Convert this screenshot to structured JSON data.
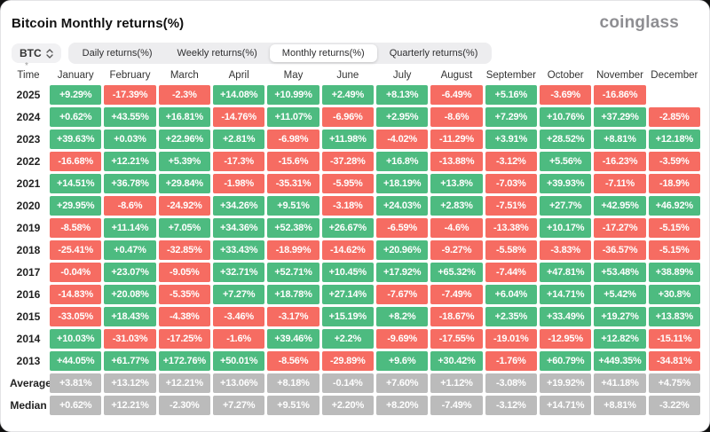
{
  "page": {
    "title": "Bitcoin Monthly returns(%)",
    "logo": "coinglass"
  },
  "controls": {
    "coin_selector": {
      "label": "BTC"
    },
    "footnote_mark": "*",
    "tabs": [
      {
        "label": "Daily returns(%)",
        "active": false
      },
      {
        "label": "Weekly returns(%)",
        "active": false
      },
      {
        "label": "Monthly returns(%)",
        "active": true
      },
      {
        "label": "Quarterly returns(%)",
        "active": false
      }
    ]
  },
  "colors": {
    "positive": "#4DBB80",
    "negative": "#F66C62",
    "neutral": "#BBBBBB"
  },
  "chart_data": {
    "type": "table",
    "title": "Bitcoin Monthly returns(%)",
    "time_header": "Time",
    "columns": [
      "January",
      "February",
      "March",
      "April",
      "May",
      "June",
      "July",
      "August",
      "September",
      "October",
      "November",
      "December"
    ],
    "rows": [
      {
        "label": "2025",
        "type": "year",
        "values": [
          "+9.29%",
          "-17.39%",
          "-2.3%",
          "+14.08%",
          "+10.99%",
          "+2.49%",
          "+8.13%",
          "-6.49%",
          "+5.16%",
          "-3.69%",
          "-16.86%",
          ""
        ]
      },
      {
        "label": "2024",
        "type": "year",
        "values": [
          "+0.62%",
          "+43.55%",
          "+16.81%",
          "-14.76%",
          "+11.07%",
          "-6.96%",
          "+2.95%",
          "-8.6%",
          "+7.29%",
          "+10.76%",
          "+37.29%",
          "-2.85%"
        ]
      },
      {
        "label": "2023",
        "type": "year",
        "values": [
          "+39.63%",
          "+0.03%",
          "+22.96%",
          "+2.81%",
          "-6.98%",
          "+11.98%",
          "-4.02%",
          "-11.29%",
          "+3.91%",
          "+28.52%",
          "+8.81%",
          "+12.18%"
        ]
      },
      {
        "label": "2022",
        "type": "year",
        "values": [
          "-16.68%",
          "+12.21%",
          "+5.39%",
          "-17.3%",
          "-15.6%",
          "-37.28%",
          "+16.8%",
          "-13.88%",
          "-3.12%",
          "+5.56%",
          "-16.23%",
          "-3.59%"
        ]
      },
      {
        "label": "2021",
        "type": "year",
        "values": [
          "+14.51%",
          "+36.78%",
          "+29.84%",
          "-1.98%",
          "-35.31%",
          "-5.95%",
          "+18.19%",
          "+13.8%",
          "-7.03%",
          "+39.93%",
          "-7.11%",
          "-18.9%"
        ]
      },
      {
        "label": "2020",
        "type": "year",
        "values": [
          "+29.95%",
          "-8.6%",
          "-24.92%",
          "+34.26%",
          "+9.51%",
          "-3.18%",
          "+24.03%",
          "+2.83%",
          "-7.51%",
          "+27.7%",
          "+42.95%",
          "+46.92%"
        ]
      },
      {
        "label": "2019",
        "type": "year",
        "values": [
          "-8.58%",
          "+11.14%",
          "+7.05%",
          "+34.36%",
          "+52.38%",
          "+26.67%",
          "-6.59%",
          "-4.6%",
          "-13.38%",
          "+10.17%",
          "-17.27%",
          "-5.15%"
        ]
      },
      {
        "label": "2018",
        "type": "year",
        "values": [
          "-25.41%",
          "+0.47%",
          "-32.85%",
          "+33.43%",
          "-18.99%",
          "-14.62%",
          "+20.96%",
          "-9.27%",
          "-5.58%",
          "-3.83%",
          "-36.57%",
          "-5.15%"
        ]
      },
      {
        "label": "2017",
        "type": "year",
        "values": [
          "-0.04%",
          "+23.07%",
          "-9.05%",
          "+32.71%",
          "+52.71%",
          "+10.45%",
          "+17.92%",
          "+65.32%",
          "-7.44%",
          "+47.81%",
          "+53.48%",
          "+38.89%"
        ]
      },
      {
        "label": "2016",
        "type": "year",
        "values": [
          "-14.83%",
          "+20.08%",
          "-5.35%",
          "+7.27%",
          "+18.78%",
          "+27.14%",
          "-7.67%",
          "-7.49%",
          "+6.04%",
          "+14.71%",
          "+5.42%",
          "+30.8%"
        ]
      },
      {
        "label": "2015",
        "type": "year",
        "values": [
          "-33.05%",
          "+18.43%",
          "-4.38%",
          "-3.46%",
          "-3.17%",
          "+15.19%",
          "+8.2%",
          "-18.67%",
          "+2.35%",
          "+33.49%",
          "+19.27%",
          "+13.83%"
        ]
      },
      {
        "label": "2014",
        "type": "year",
        "values": [
          "+10.03%",
          "-31.03%",
          "-17.25%",
          "-1.6%",
          "+39.46%",
          "+2.2%",
          "-9.69%",
          "-17.55%",
          "-19.01%",
          "-12.95%",
          "+12.82%",
          "-15.11%"
        ]
      },
      {
        "label": "2013",
        "type": "year",
        "values": [
          "+44.05%",
          "+61.77%",
          "+172.76%",
          "+50.01%",
          "-8.56%",
          "-29.89%",
          "+9.6%",
          "+30.42%",
          "-1.76%",
          "+60.79%",
          "+449.35%",
          "-34.81%"
        ]
      },
      {
        "label": "Average",
        "type": "summary",
        "values": [
          "+3.81%",
          "+13.12%",
          "+12.21%",
          "+13.06%",
          "+8.18%",
          "-0.14%",
          "+7.60%",
          "+1.12%",
          "-3.08%",
          "+19.92%",
          "+41.18%",
          "+4.75%"
        ]
      },
      {
        "label": "Median",
        "type": "summary",
        "values": [
          "+0.62%",
          "+12.21%",
          "-2.30%",
          "+7.27%",
          "+9.51%",
          "+2.20%",
          "+8.20%",
          "-7.49%",
          "-3.12%",
          "+14.71%",
          "+8.81%",
          "-3.22%"
        ]
      }
    ]
  }
}
